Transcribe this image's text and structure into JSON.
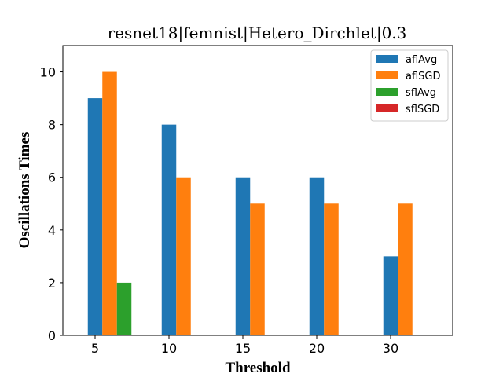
{
  "chart_data": {
    "type": "bar",
    "title": "resnet18|femnist|Hetero_Dirchlet|0.3",
    "xlabel": "Threshold",
    "ylabel": "Oscillations Times",
    "categories": [
      "5",
      "10",
      "15",
      "20",
      "30"
    ],
    "ylim": [
      0,
      11
    ],
    "yticks": [
      0,
      2,
      4,
      6,
      8,
      10
    ],
    "grid": false,
    "legend_position": "top-right",
    "series": [
      {
        "name": "aflAvg",
        "color": "#1f77b4",
        "values": [
          9,
          8,
          6,
          6,
          3
        ]
      },
      {
        "name": "aflSGD",
        "color": "#ff7f0e",
        "values": [
          10,
          6,
          5,
          5,
          5
        ]
      },
      {
        "name": "sflAvg",
        "color": "#2ca02c",
        "values": [
          2,
          0,
          0,
          0,
          0
        ]
      },
      {
        "name": "sflSGD",
        "color": "#d62728",
        "values": [
          0,
          0,
          0,
          0,
          0
        ]
      }
    ]
  }
}
